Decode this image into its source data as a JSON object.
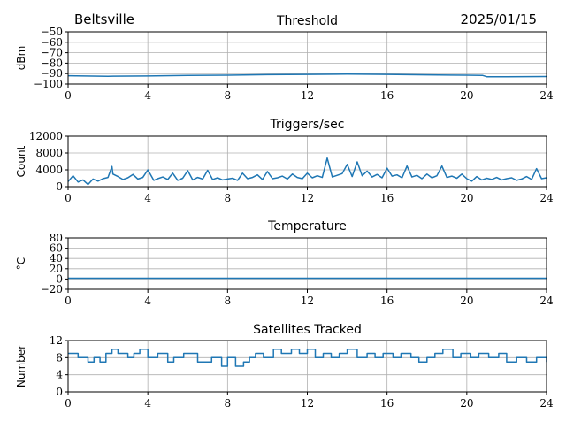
{
  "header": {
    "station": "Beltsville",
    "date": "2025/01/15"
  },
  "colors": {
    "line": "#1f77b4",
    "grid": "#b0b0b0",
    "axis": "#000000"
  },
  "chart_data": [
    {
      "type": "line",
      "title": "Threshold",
      "xlabel": "",
      "ylabel": "dBm",
      "xlim": [
        0,
        24
      ],
      "ylim": [
        -100,
        -50
      ],
      "xticks": [
        0,
        4,
        8,
        12,
        16,
        20,
        24
      ],
      "yticks": [
        -100,
        -90,
        -80,
        -70,
        -60,
        -50
      ],
      "grid": true,
      "series": [
        {
          "x": [
            0,
            2,
            4,
            6,
            8,
            10,
            12,
            14,
            16,
            18,
            20,
            20.8,
            21,
            22,
            24
          ],
          "y": [
            -92,
            -92.5,
            -92.3,
            -91.8,
            -91.5,
            -91,
            -90.8,
            -90.5,
            -90.8,
            -91.2,
            -91.5,
            -91.8,
            -93,
            -93,
            -92.8
          ]
        }
      ]
    },
    {
      "type": "line",
      "title": "Triggers/sec",
      "xlabel": "",
      "ylabel": "Count",
      "xlim": [
        0,
        24
      ],
      "ylim": [
        0,
        12000
      ],
      "xticks": [
        0,
        4,
        8,
        12,
        16,
        20,
        24
      ],
      "yticks": [
        0,
        4000,
        8000,
        12000
      ],
      "grid": true,
      "series": [
        {
          "x": [
            0,
            0.25,
            0.5,
            0.75,
            1,
            1.25,
            1.5,
            1.75,
            2,
            2.2,
            2.25,
            2.5,
            2.75,
            3,
            3.25,
            3.5,
            3.75,
            4,
            4.3,
            4.5,
            4.75,
            5,
            5.25,
            5.5,
            5.75,
            6,
            6.25,
            6.5,
            6.75,
            7,
            7.25,
            7.5,
            7.75,
            8,
            8.25,
            8.5,
            8.75,
            9,
            9.25,
            9.5,
            9.75,
            10,
            10.25,
            10.5,
            10.75,
            11,
            11.25,
            11.5,
            11.75,
            12,
            12.25,
            12.5,
            12.75,
            13,
            13.25,
            13.5,
            13.75,
            14,
            14.25,
            14.5,
            14.75,
            15,
            15.25,
            15.5,
            15.75,
            16,
            16.25,
            16.5,
            16.75,
            17,
            17.25,
            17.5,
            17.75,
            18,
            18.25,
            18.5,
            18.75,
            19,
            19.25,
            19.5,
            19.75,
            20,
            20.25,
            20.5,
            20.75,
            21,
            21.25,
            21.5,
            21.75,
            22,
            22.25,
            22.5,
            22.75,
            23,
            23.25,
            23.5,
            23.75,
            24
          ],
          "y": [
            1200,
            2600,
            1100,
            1600,
            500,
            1800,
            1300,
            1900,
            2200,
            4800,
            3000,
            2400,
            1700,
            2100,
            2900,
            1800,
            2200,
            4000,
            1500,
            1900,
            2300,
            1700,
            3200,
            1500,
            2000,
            3800,
            1600,
            2200,
            1800,
            3900,
            1700,
            2100,
            1600,
            1800,
            2000,
            1500,
            3200,
            1900,
            2200,
            2800,
            1700,
            3600,
            1900,
            2100,
            2500,
            1800,
            3000,
            2200,
            1900,
            3200,
            2100,
            2600,
            2200,
            6800,
            2300,
            2700,
            3100,
            5300,
            2400,
            5900,
            2600,
            3700,
            2300,
            2900,
            2100,
            4400,
            2500,
            2800,
            2100,
            4900,
            2300,
            2700,
            1900,
            3000,
            2100,
            2600,
            4900,
            2200,
            2500,
            2000,
            3000,
            1900,
            1300,
            2400,
            1600,
            2000,
            1700,
            2200,
            1600,
            1900,
            2100,
            1500,
            1800,
            2400,
            1700,
            4300,
            1900,
            2100
          ]
        }
      ]
    },
    {
      "type": "line",
      "title": "Temperature",
      "xlabel": "",
      "ylabel": "°C",
      "xlim": [
        0,
        24
      ],
      "ylim": [
        -20,
        80
      ],
      "xticks": [
        0,
        4,
        8,
        12,
        16,
        20,
        24
      ],
      "yticks": [
        -20,
        0,
        20,
        40,
        60,
        80
      ],
      "grid": true,
      "series": [
        {
          "x": [
            0,
            24
          ],
          "y": [
            1.5,
            1.5
          ]
        }
      ]
    },
    {
      "type": "line",
      "title": "Satellites Tracked",
      "xlabel": "",
      "ylabel": "Number",
      "xlim": [
        0,
        24
      ],
      "ylim": [
        0,
        12
      ],
      "xticks": [
        0,
        4,
        8,
        12,
        16,
        20,
        24
      ],
      "yticks": [
        0,
        4,
        8,
        12
      ],
      "grid": true,
      "step": true,
      "series": [
        {
          "x": [
            0,
            0.5,
            1,
            1.3,
            1.6,
            1.9,
            2.2,
            2.5,
            3,
            3.3,
            3.6,
            4,
            4.5,
            5,
            5.3,
            5.8,
            6.5,
            7.2,
            7.7,
            8,
            8.4,
            8.8,
            9.1,
            9.4,
            9.8,
            10.3,
            10.7,
            11.2,
            11.6,
            12,
            12.4,
            12.8,
            13.2,
            13.6,
            14,
            14.5,
            15,
            15.4,
            15.8,
            16.3,
            16.7,
            17.2,
            17.6,
            18,
            18.4,
            18.8,
            19.3,
            19.7,
            20.2,
            20.6,
            21.1,
            21.6,
            22,
            22.5,
            23,
            23.5,
            24
          ],
          "y": [
            9,
            8,
            7,
            8,
            7,
            9,
            10,
            9,
            8,
            9,
            10,
            8,
            9,
            7,
            8,
            9,
            7,
            8,
            6,
            8,
            6,
            7,
            8,
            9,
            8,
            10,
            9,
            10,
            9,
            10,
            8,
            9,
            8,
            9,
            10,
            8,
            9,
            8,
            9,
            8,
            9,
            8,
            7,
            8,
            9,
            10,
            8,
            9,
            8,
            9,
            8,
            9,
            7,
            8,
            7,
            8,
            7
          ]
        }
      ]
    }
  ]
}
